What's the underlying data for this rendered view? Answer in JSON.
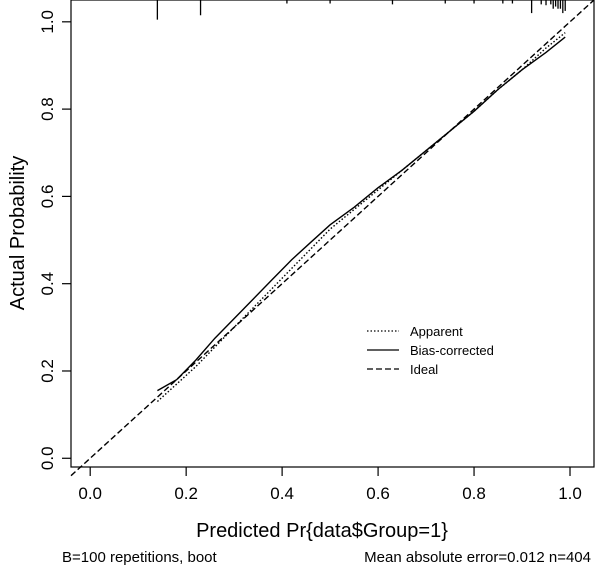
{
  "chart_data": {
    "type": "line",
    "title": "",
    "xlabel": "Predicted Pr{data$Group=1}",
    "ylabel": "Actual Probability",
    "xlim": [
      -0.04,
      1.05
    ],
    "ylim": [
      -0.02,
      1.05
    ],
    "x_ticks": [
      "0.0",
      "0.2",
      "0.4",
      "0.6",
      "0.8",
      "1.0"
    ],
    "y_ticks": [
      "0.0",
      "0.2",
      "0.4",
      "0.6",
      "0.8",
      "1.0"
    ],
    "x_tick_values": [
      0,
      0.2,
      0.4,
      0.6,
      0.8,
      1.0
    ],
    "y_tick_values": [
      0,
      0.2,
      0.4,
      0.6,
      0.8,
      1.0
    ],
    "grid": false,
    "legend_position": "lower-right",
    "series": [
      {
        "name": "Apparent",
        "line_style": "dotted",
        "x": [
          0.14,
          0.18,
          0.22,
          0.26,
          0.3,
          0.34,
          0.38,
          0.42,
          0.46,
          0.5,
          0.55,
          0.6,
          0.65,
          0.7,
          0.75,
          0.8,
          0.85,
          0.9,
          0.95,
          0.99
        ],
        "y": [
          0.13,
          0.17,
          0.21,
          0.255,
          0.3,
          0.345,
          0.39,
          0.435,
          0.48,
          0.525,
          0.57,
          0.615,
          0.66,
          0.705,
          0.75,
          0.795,
          0.845,
          0.89,
          0.94,
          0.975
        ]
      },
      {
        "name": "Bias-corrected",
        "line_style": "solid",
        "x": [
          0.14,
          0.18,
          0.22,
          0.26,
          0.3,
          0.34,
          0.38,
          0.42,
          0.46,
          0.5,
          0.55,
          0.6,
          0.65,
          0.7,
          0.75,
          0.8,
          0.85,
          0.9,
          0.95,
          0.99
        ],
        "y": [
          0.155,
          0.18,
          0.225,
          0.275,
          0.32,
          0.365,
          0.41,
          0.455,
          0.495,
          0.535,
          0.575,
          0.62,
          0.66,
          0.705,
          0.75,
          0.795,
          0.845,
          0.89,
          0.93,
          0.965
        ]
      },
      {
        "name": "Ideal",
        "line_style": "dashed",
        "x": [
          -0.04,
          1.05
        ],
        "y": [
          -0.04,
          1.05
        ]
      }
    ],
    "rug_x": [
      0.14,
      0.23,
      0.41,
      0.5,
      0.63,
      0.74,
      0.8,
      0.86,
      0.88,
      0.92,
      0.94,
      0.95,
      0.96,
      0.965,
      0.97,
      0.975,
      0.98,
      0.985,
      0.99
    ],
    "rug_heights": [
      0.045,
      0.035,
      0.008,
      0.008,
      0.01,
      0.008,
      0.008,
      0.008,
      0.008,
      0.03,
      0.01,
      0.012,
      0.01,
      0.02,
      0.015,
      0.02,
      0.02,
      0.03,
      0.025
    ]
  },
  "footer": {
    "left": "B=100 repetitions, boot",
    "right": "Mean absolute error=0.012 n=404"
  },
  "colors": {
    "lines": "#000000",
    "background": "#ffffff"
  }
}
